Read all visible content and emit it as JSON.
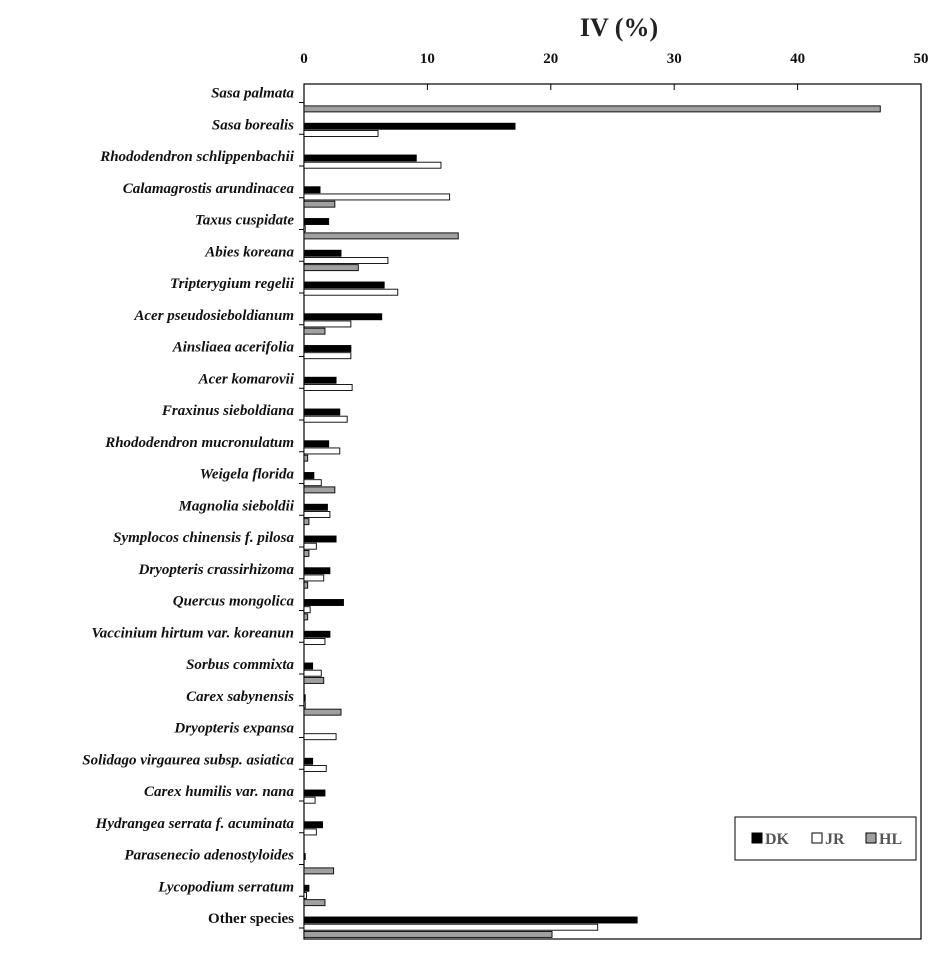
{
  "chart_data": {
    "type": "bar",
    "orientation": "horizontal",
    "title": "IV (%)",
    "xlabel": "IV (%)",
    "ylabel": "",
    "xlim": [
      0,
      50
    ],
    "x_ticks": [
      0,
      10,
      20,
      30,
      40,
      50
    ],
    "x_axis_position": "top",
    "grid": false,
    "legend_position": "bottom-right",
    "categories": [
      {
        "label": "Sasa palmata",
        "italic": true
      },
      {
        "label": "Sasa borealis",
        "italic": true
      },
      {
        "label": "Rhododendron schlippenbachii",
        "italic": true
      },
      {
        "label": "Calamagrostis arundinacea",
        "italic": true
      },
      {
        "label": "Taxus cuspidate",
        "italic": true
      },
      {
        "label": "Abies koreana",
        "italic": true
      },
      {
        "label": "Tripterygium regelii",
        "italic": true
      },
      {
        "label": "Acer pseudosieboldianum",
        "italic": true
      },
      {
        "label": "Ainsliaea acerifolia",
        "italic": true
      },
      {
        "label": "Acer komarovii",
        "italic": true
      },
      {
        "label": "Fraxinus sieboldiana",
        "italic": true
      },
      {
        "label": "Rhododendron mucronulatum",
        "italic": true
      },
      {
        "label": "Weigela florida",
        "italic": true
      },
      {
        "label": "Magnolia sieboldii",
        "italic": true
      },
      {
        "label": "Symplocos chinensis f. pilosa",
        "italic": true
      },
      {
        "label": "Dryopteris crassirhizoma",
        "italic": true
      },
      {
        "label": "Quercus mongolica",
        "italic": true
      },
      {
        "label": "Vaccinium hirtum var. koreanun",
        "italic": true
      },
      {
        "label": "Sorbus commixta",
        "italic": true
      },
      {
        "label": "Carex sabynensis",
        "italic": true
      },
      {
        "label": "Dryopteris expansa",
        "italic": true
      },
      {
        "label": "Solidago virgaurea subsp. asiatica",
        "italic": true
      },
      {
        "label": "Carex humilis var. nana",
        "italic": true
      },
      {
        "label": "Hydrangea serrata f. acuminata",
        "italic": true
      },
      {
        "label": "Parasenecio adenostyloides",
        "italic": true
      },
      {
        "label": "Lycopodium serratum",
        "italic": true
      },
      {
        "label": "Other species",
        "italic": false
      }
    ],
    "series": [
      {
        "name": "DK",
        "color": "#000000",
        "values": [
          0,
          17.1,
          9.1,
          1.3,
          2.0,
          3.0,
          6.5,
          6.3,
          3.8,
          2.6,
          2.9,
          2.0,
          0.8,
          1.9,
          2.6,
          2.1,
          3.2,
          2.1,
          0.7,
          0.1,
          0,
          0.7,
          1.7,
          1.5,
          0.1,
          0.4,
          27.0
        ]
      },
      {
        "name": "JR",
        "color": "#ffffff",
        "values": [
          0,
          6.0,
          11.1,
          11.8,
          0.1,
          6.8,
          7.6,
          3.8,
          3.8,
          3.9,
          3.5,
          2.9,
          1.4,
          2.1,
          1.0,
          1.6,
          0.5,
          1.7,
          1.4,
          0.1,
          2.6,
          1.8,
          0.9,
          1.0,
          0,
          0.2,
          23.8
        ]
      },
      {
        "name": "HL",
        "color": "#a0a0a0",
        "values": [
          46.7,
          0,
          0,
          2.5,
          12.5,
          4.4,
          0,
          1.7,
          0,
          0,
          0,
          0.3,
          2.5,
          0.4,
          0.4,
          0.3,
          0.3,
          0,
          1.6,
          3.0,
          0,
          0,
          0,
          0,
          2.4,
          1.7,
          20.1
        ]
      }
    ]
  }
}
